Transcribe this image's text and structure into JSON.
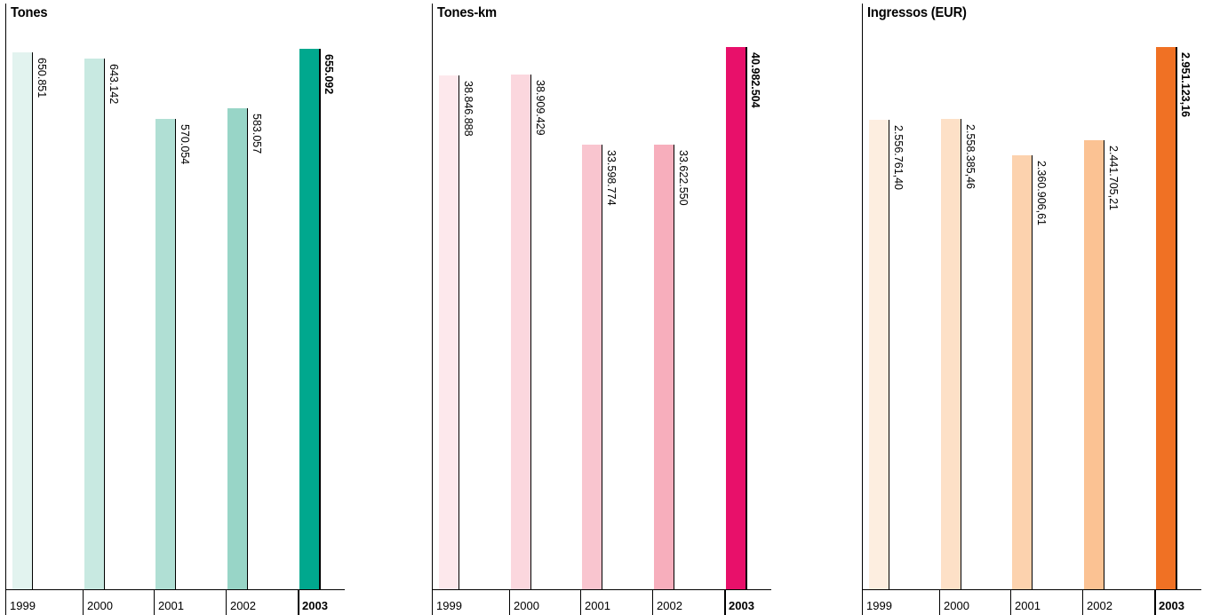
{
  "chart_data": [
    {
      "type": "bar",
      "title": "Tones",
      "categories": [
        "1999",
        "2000",
        "2001",
        "2002",
        "2003"
      ],
      "values": [
        650851,
        643142,
        570054,
        583057,
        655092
      ],
      "value_labels": [
        "650.851",
        "643.142",
        "570.054",
        "583.057",
        "655.092"
      ],
      "highlight_index": 4,
      "colors": [
        "#e2f3ef",
        "#c8e9e1",
        "#b0dfd4",
        "#98d5c7",
        "#00a88e"
      ],
      "ylim": [
        0,
        660000
      ]
    },
    {
      "type": "bar",
      "title": "Tones-km",
      "categories": [
        "1999",
        "2000",
        "2001",
        "2002",
        "2003"
      ],
      "values": [
        38846888,
        38909429,
        33598774,
        33622550,
        40982504
      ],
      "value_labels": [
        "38.846.888",
        "38.909.429",
        "33.598.774",
        "33.622.550",
        "40.982.504"
      ],
      "highlight_index": 4,
      "colors": [
        "#fde8ec",
        "#fbd7de",
        "#f9c5cf",
        "#f7aebc",
        "#e8106a"
      ],
      "ylim": [
        0,
        41200000
      ]
    },
    {
      "type": "bar",
      "title": "Ingressos (EUR)",
      "categories": [
        "1999",
        "2000",
        "2001",
        "2002",
        "2003"
      ],
      "values": [
        2556761.4,
        2558385.46,
        2360906.61,
        2441705.21,
        2951123.16
      ],
      "value_labels": [
        "2.556.761,40",
        "2.558.385,46",
        "2.360.906,61",
        "2.441.705,21",
        "2.951.123,16"
      ],
      "highlight_index": 4,
      "colors": [
        "#fdeee0",
        "#fde0c7",
        "#fcd2ae",
        "#fbc293",
        "#f07124"
      ],
      "ylim": [
        0,
        2965000
      ]
    }
  ]
}
